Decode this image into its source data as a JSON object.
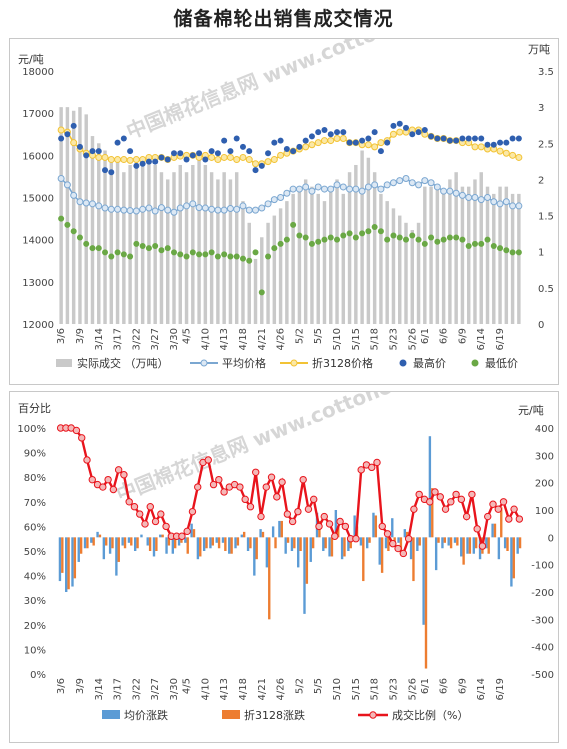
{
  "page_title": "储备棉轮出销售成交情况",
  "watermark": "中国棉花信息网 www.cottonchina.org",
  "colors": {
    "volume_bar": "#c9c9c9",
    "avg_price": "#7ba7d1",
    "avg_marker_fill": "#dce8f4",
    "p3128": "#f2c335",
    "p3128_marker_fill": "#fbe8a6",
    "high": "#2f5faf",
    "low": "#6aa845",
    "avg_change": "#5b9bd5",
    "p3128_change": "#ed7d31",
    "ratio": "#e8141c",
    "ratio_marker_fill": "#f4b8b8"
  },
  "chart_data": [
    {
      "type": "bar+line",
      "ylabel_left": "元/吨",
      "ylabel_right": "万吨",
      "ylim_left": [
        12000,
        18000
      ],
      "ylim_right": [
        0,
        3.5
      ],
      "left_ticks": [
        "12000",
        "13000",
        "14000",
        "15000",
        "16000",
        "17000",
        "18000"
      ],
      "right_ticks": [
        "0",
        "0.5",
        "1",
        "1.5",
        "2",
        "2.5",
        "3",
        "3.5"
      ],
      "categories": [
        "3/6",
        "3/7",
        "3/8",
        "3/9",
        "3/10",
        "3/13",
        "3/14",
        "3/15",
        "3/16",
        "3/17",
        "3/20",
        "3/21",
        "3/22",
        "3/23",
        "3/24",
        "3/27",
        "3/28",
        "3/29",
        "3/30",
        "3/31",
        "4/5",
        "4/6",
        "4/7",
        "4/10",
        "4/11",
        "4/12",
        "4/13",
        "4/14",
        "4/17",
        "4/18",
        "4/19",
        "4/20",
        "4/21",
        "4/24",
        "4/25",
        "4/26",
        "4/27",
        "4/28",
        "5/2",
        "5/3",
        "5/4",
        "5/5",
        "5/8",
        "5/9",
        "5/10",
        "5/11",
        "5/12",
        "5/15",
        "5/16",
        "5/17",
        "5/18",
        "5/19",
        "5/22",
        "5/23",
        "5/24",
        "5/25",
        "5/26",
        "5/31",
        "6/1",
        "6/2",
        "6/5",
        "6/6",
        "6/7",
        "6/8",
        "6/9",
        "6/12",
        "6/13",
        "6/14",
        "6/15",
        "6/16",
        "6/19",
        "6/20",
        "6/21",
        "6/22"
      ],
      "tick_labels": [
        "3/6",
        "3/9",
        "3/14",
        "3/17",
        "3/22",
        "3/27",
        "3/30",
        "4/5",
        "4/10",
        "4/13",
        "4/18",
        "4/21",
        "4/26",
        "5/2",
        "5/5",
        "5/10",
        "5/15",
        "5/18",
        "5/23",
        "5/26",
        "6/1",
        "6/6",
        "6/9",
        "6/14",
        "6/19"
      ],
      "series": [
        {
          "name": "实际成交 （万吨）",
          "axis": "right",
          "kind": "bar",
          "values": [
            3.0,
            3.0,
            2.95,
            3.0,
            2.9,
            2.6,
            2.5,
            2.4,
            2.3,
            2.3,
            2.1,
            2.2,
            2.3,
            2.2,
            2.3,
            2.2,
            2.1,
            2.0,
            2.1,
            2.2,
            2.1,
            2.2,
            2.4,
            2.2,
            2.1,
            2.0,
            2.1,
            2.0,
            2.1,
            1.7,
            1.4,
            0.9,
            1.2,
            1.4,
            1.5,
            1.6,
            1.7,
            1.8,
            1.9,
            2.0,
            1.9,
            1.8,
            1.7,
            1.9,
            2.0,
            1.8,
            2.1,
            2.2,
            2.4,
            2.3,
            2.1,
            1.8,
            1.7,
            1.6,
            1.5,
            1.4,
            1.3,
            1.4,
            1.9,
            1.9,
            1.9,
            1.8,
            2.0,
            2.1,
            1.9,
            1.9,
            2.0,
            2.1,
            1.9,
            1.8,
            1.9,
            1.9,
            1.8,
            1.8
          ]
        },
        {
          "name": "平均价格",
          "axis": "left",
          "kind": "line",
          "values": [
            15450,
            15300,
            15050,
            14900,
            14870,
            14850,
            14800,
            14750,
            14720,
            14720,
            14700,
            14690,
            14680,
            14720,
            14750,
            14680,
            14760,
            14700,
            14650,
            14750,
            14800,
            14850,
            14760,
            14750,
            14720,
            14700,
            14700,
            14740,
            14720,
            14800,
            14700,
            14700,
            14750,
            14850,
            14950,
            15000,
            15100,
            15200,
            15200,
            15250,
            15150,
            15250,
            15200,
            15200,
            15300,
            15250,
            15200,
            15200,
            15150,
            15250,
            15300,
            15200,
            15300,
            15350,
            15400,
            15450,
            15350,
            15300,
            15400,
            15350,
            15250,
            15150,
            15150,
            15100,
            15050,
            15000,
            15000,
            14950,
            15000,
            14900,
            14850,
            14900,
            14800,
            14800
          ]
        },
        {
          "name": "折3128价格",
          "axis": "left",
          "kind": "line",
          "values": [
            16600,
            16550,
            16300,
            16150,
            16050,
            16000,
            15950,
            15950,
            15900,
            15900,
            15900,
            15880,
            15900,
            15900,
            15950,
            15950,
            15950,
            15900,
            15950,
            15980,
            16000,
            16000,
            15950,
            16000,
            15950,
            15900,
            15950,
            15950,
            15900,
            15950,
            15900,
            15800,
            15800,
            15850,
            15900,
            16000,
            16050,
            16100,
            16150,
            16200,
            16250,
            16300,
            16350,
            16350,
            16400,
            16400,
            16300,
            16300,
            16250,
            16250,
            16200,
            16300,
            16350,
            16500,
            16550,
            16550,
            16600,
            16600,
            16500,
            16450,
            16400,
            16400,
            16350,
            16350,
            16300,
            16300,
            16200,
            16200,
            16150,
            16150,
            16100,
            16050,
            16000,
            15950
          ]
        },
        {
          "name": "最高价",
          "axis": "left",
          "kind": "scatter",
          "values": [
            16400,
            16500,
            16700,
            16200,
            16000,
            16100,
            16100,
            15650,
            15600,
            16300,
            16400,
            16100,
            15750,
            15800,
            15850,
            15850,
            15950,
            15900,
            16050,
            16050,
            15900,
            16000,
            16050,
            15900,
            16100,
            16050,
            16350,
            16100,
            16400,
            16200,
            16100,
            15650,
            15750,
            16050,
            16300,
            16350,
            16150,
            16100,
            16200,
            16350,
            16450,
            16550,
            16600,
            16500,
            16550,
            16550,
            16300,
            16300,
            16350,
            16400,
            16550,
            16100,
            16300,
            16700,
            16750,
            16650,
            16500,
            16550,
            16600,
            16450,
            16400,
            16400,
            16350,
            16350,
            16400,
            16400,
            16400,
            16400,
            16250,
            16250,
            16300,
            16300,
            16400,
            16400
          ]
        },
        {
          "name": "最低价",
          "axis": "left",
          "kind": "scatter",
          "values": [
            14500,
            14350,
            14200,
            14050,
            13900,
            13800,
            13800,
            13700,
            13600,
            13700,
            13650,
            13600,
            13900,
            13850,
            13800,
            13850,
            13750,
            13800,
            13700,
            13650,
            13600,
            13700,
            13650,
            13650,
            13700,
            13600,
            13650,
            13600,
            13600,
            13550,
            13500,
            13700,
            12750,
            13600,
            13800,
            13900,
            14000,
            14350,
            14100,
            14050,
            13900,
            13950,
            14000,
            14050,
            14000,
            14100,
            14150,
            14050,
            14150,
            14200,
            14300,
            14200,
            14000,
            14100,
            14050,
            14000,
            14100,
            14000,
            13900,
            14050,
            13950,
            14000,
            14050,
            14050,
            14000,
            13850,
            13900,
            13900,
            14000,
            13850,
            13800,
            13750,
            13700,
            13700
          ]
        }
      ],
      "legend_position": "bottom"
    },
    {
      "type": "bar+line",
      "ylabel_left": "百分比",
      "ylabel_right": "元/吨",
      "ylim_left": [
        0,
        100
      ],
      "ylim_right": [
        -500,
        400
      ],
      "left_ticks": [
        "0%",
        "10%",
        "20%",
        "30%",
        "40%",
        "50%",
        "60%",
        "70%",
        "80%",
        "90%",
        "100%"
      ],
      "right_ticks": [
        "-500",
        "-400",
        "-300",
        "-200",
        "-100",
        "0",
        "100",
        "200",
        "300",
        "400"
      ],
      "tick_labels": [
        "3/6",
        "3/9",
        "3/14",
        "3/17",
        "3/22",
        "3/27",
        "3/30",
        "4/5",
        "4/10",
        "4/13",
        "4/18",
        "4/21",
        "4/26",
        "5/2",
        "5/5",
        "5/10",
        "5/15",
        "5/18",
        "5/23",
        "5/26",
        "6/1",
        "6/6",
        "6/9",
        "6/14",
        "6/19"
      ],
      "series": [
        {
          "name": "均价涨跌",
          "axis": "right",
          "kind": "bar",
          "values": [
            -160,
            -200,
            -180,
            -90,
            -40,
            -20,
            20,
            -80,
            -60,
            -140,
            -30,
            -20,
            -50,
            10,
            -30,
            -70,
            10,
            -60,
            -60,
            -30,
            -20,
            50,
            -80,
            -50,
            -40,
            -20,
            -20,
            -60,
            -40,
            10,
            -50,
            -140,
            30,
            -110,
            40,
            60,
            -60,
            -50,
            -110,
            -280,
            -90,
            90,
            -50,
            -70,
            100,
            -80,
            -50,
            80,
            -30,
            -40,
            90,
            -100,
            -40,
            70,
            -20,
            30,
            -80,
            -50,
            -320,
            370,
            -120,
            -40,
            -30,
            -20,
            -70,
            -60,
            -60,
            -80,
            -40,
            50,
            -80,
            -40,
            -180,
            -60,
            -90
          ]
        },
        {
          "name": "折3128涨跌",
          "axis": "right",
          "kind": "bar",
          "values": [
            -130,
            -190,
            -150,
            -60,
            -40,
            -30,
            10,
            -30,
            -40,
            -90,
            -40,
            -30,
            -40,
            0,
            -50,
            -50,
            10,
            -30,
            -40,
            -20,
            -60,
            30,
            -70,
            -40,
            -30,
            -40,
            -50,
            -60,
            -30,
            20,
            -40,
            -80,
            20,
            -300,
            -40,
            60,
            -20,
            -40,
            -50,
            -170,
            -40,
            60,
            -40,
            -70,
            40,
            -70,
            -40,
            40,
            -160,
            -20,
            80,
            -130,
            -50,
            -20,
            -60,
            20,
            -160,
            -30,
            -480,
            180,
            -20,
            -20,
            -40,
            -30,
            -100,
            -60,
            -40,
            -60,
            -60,
            50,
            110,
            -50,
            -150,
            -40,
            -60
          ]
        },
        {
          "name": "成交比例（%）",
          "axis": "left",
          "kind": "line",
          "values": [
            100,
            100,
            100,
            99,
            96,
            87,
            79,
            77,
            76,
            79,
            75,
            83,
            81,
            70,
            68,
            65,
            61,
            68,
            62,
            65,
            60,
            56,
            56,
            56,
            58,
            66,
            76,
            86,
            87,
            77,
            79,
            74,
            76,
            77,
            76,
            71,
            68,
            82,
            64,
            76,
            80,
            72,
            78,
            65,
            62,
            66,
            79,
            67,
            71,
            60,
            64,
            61,
            56,
            62,
            60,
            55,
            55,
            83,
            85,
            84,
            86,
            60,
            57,
            53,
            51,
            49,
            55,
            67,
            73,
            71,
            70,
            74,
            72,
            67,
            70,
            73,
            71,
            64,
            73,
            59,
            52,
            64,
            69,
            67,
            70,
            63,
            67,
            63
          ]
        }
      ],
      "legend_position": "bottom"
    }
  ],
  "legend_top": {
    "volume": "实际成交 （万吨）",
    "avg": "平均价格",
    "p3128": "折3128价格",
    "high": "最高价",
    "low": "最低价"
  },
  "legend_bottom": {
    "avg_change": "均价涨跌",
    "p3128_change": "折3128涨跌",
    "ratio": "成交比例（%）"
  }
}
